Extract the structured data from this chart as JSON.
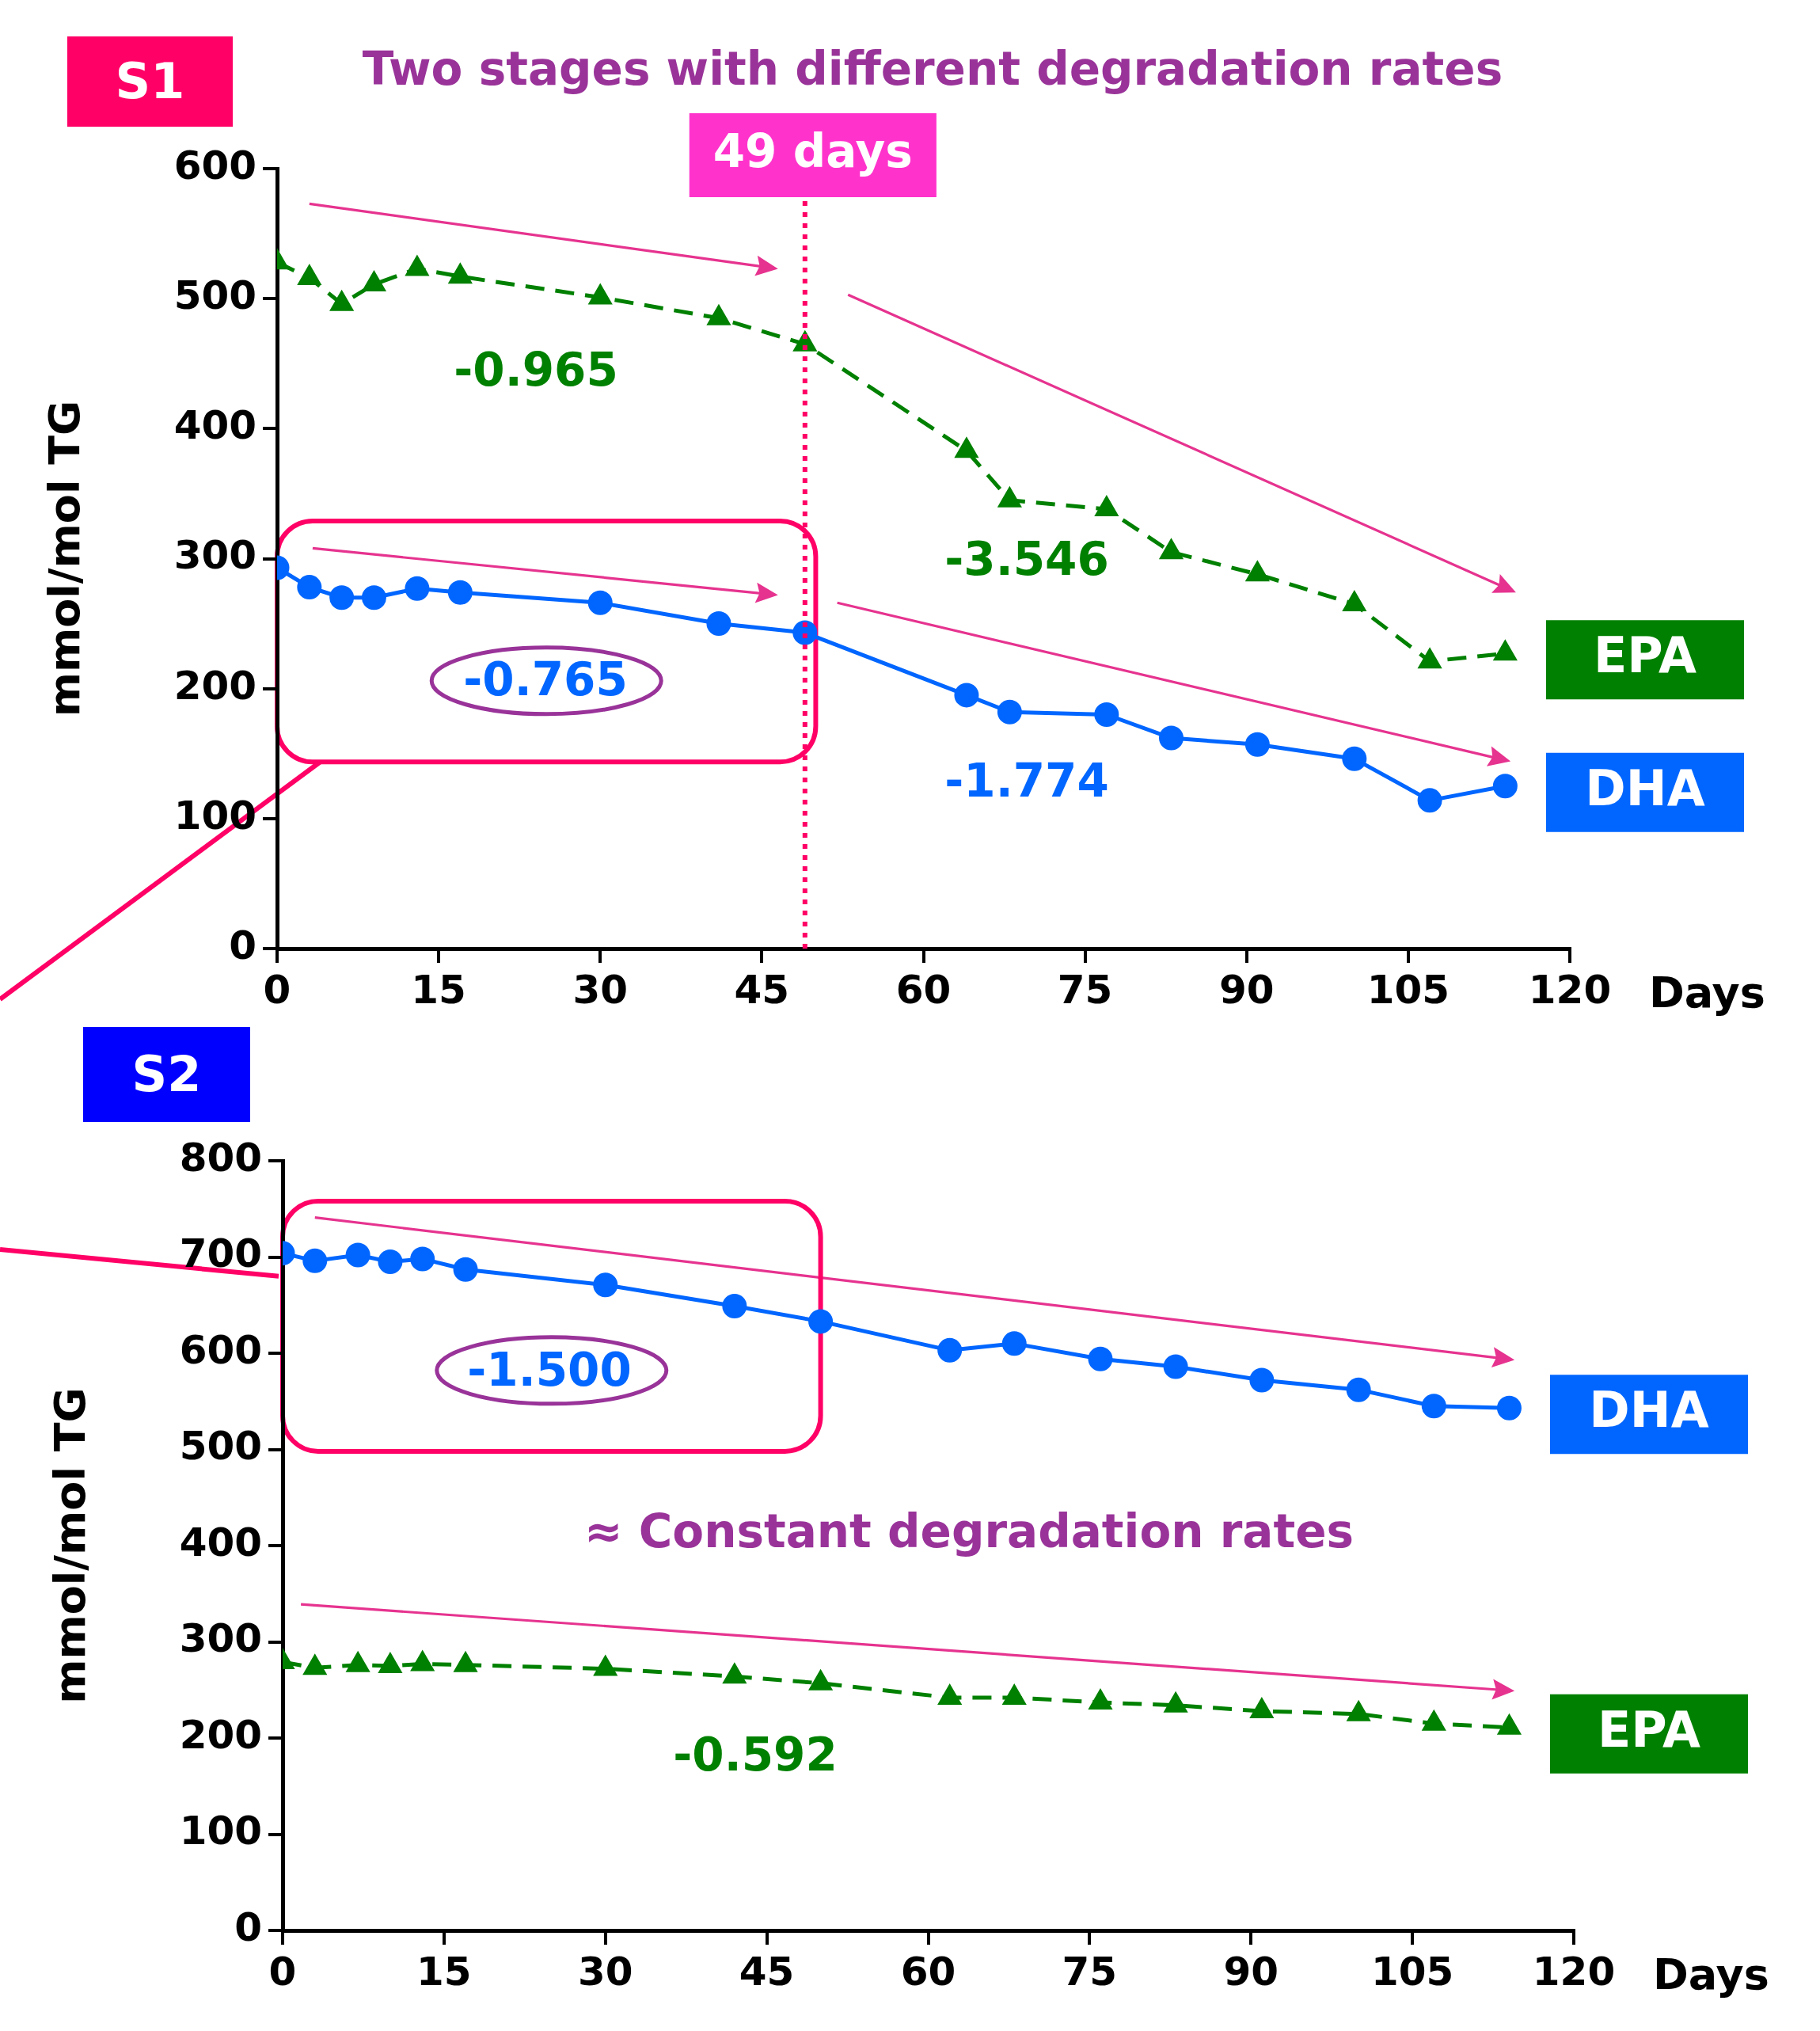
{
  "chart_data": [
    {
      "type": "line",
      "title": "Two stages with different degradation rates",
      "xlabel": "Days",
      "ylabel": "mmol/mol TG",
      "xlim": [
        0,
        120
      ],
      "xticks": [
        0,
        15,
        30,
        45,
        60,
        75,
        90,
        105,
        120
      ],
      "ylim": [
        0,
        600
      ],
      "yticks": [
        0,
        100,
        200,
        300,
        400,
        500,
        600
      ],
      "series": [
        {
          "name": "EPA",
          "color": "#008000",
          "line_style": "dashed",
          "marker": "triangle",
          "x": [
            0,
            3,
            6,
            9,
            13,
            17,
            30,
            41,
            49,
            64,
            68,
            77,
            83,
            91,
            100,
            107,
            114
          ],
          "values": [
            528,
            516,
            496,
            511,
            523,
            517,
            501,
            485,
            465,
            383,
            345,
            338,
            305,
            288,
            265,
            221,
            227
          ]
        },
        {
          "name": "DHA",
          "color": "#0066ff",
          "line_style": "solid",
          "marker": "circle",
          "x": [
            0,
            3,
            6,
            9,
            13,
            17,
            30,
            41,
            49,
            64,
            68,
            77,
            83,
            91,
            100,
            107,
            114
          ],
          "values": [
            293,
            278,
            270,
            270,
            277,
            274,
            266,
            250,
            243,
            195,
            182,
            180,
            162,
            157,
            146,
            114,
            125
          ]
        }
      ],
      "ref_lines": [
        {
          "axis": "x",
          "value": 49,
          "label": "49 days",
          "color": "#ff0066",
          "line_style": "dotted"
        }
      ],
      "annotations": [
        "S1",
        "-0.965",
        "-3.546",
        "-0.765",
        "-1.774"
      ]
    },
    {
      "type": "line",
      "xlabel": "Days",
      "ylabel": "mmol/mol TG",
      "xlim": [
        0,
        120
      ],
      "xticks": [
        0,
        15,
        30,
        45,
        60,
        75,
        90,
        105,
        120
      ],
      "ylim": [
        0,
        800
      ],
      "yticks": [
        0,
        100,
        200,
        300,
        400,
        500,
        600,
        700,
        800
      ],
      "series": [
        {
          "name": "DHA",
          "color": "#0066ff",
          "line_style": "solid",
          "marker": "circle",
          "x": [
            0,
            3,
            7,
            10,
            13,
            17,
            30,
            42,
            50,
            62,
            68,
            76,
            83,
            91,
            100,
            107,
            114
          ],
          "values": [
            704,
            696,
            702,
            695,
            698,
            687,
            671,
            649,
            633,
            603,
            610,
            594,
            586,
            572,
            562,
            545,
            543
          ]
        },
        {
          "name": "EPA",
          "color": "#008000",
          "line_style": "dashed",
          "marker": "triangle",
          "x": [
            0,
            3,
            7,
            10,
            13,
            17,
            30,
            42,
            50,
            62,
            68,
            76,
            83,
            91,
            100,
            107,
            114
          ],
          "values": [
            279,
            273,
            276,
            275,
            277,
            276,
            272,
            264,
            257,
            242,
            242,
            237,
            234,
            228,
            225,
            215,
            211
          ]
        }
      ],
      "annotations": [
        "S2",
        "≈ Constant degradation rates",
        "-1.500",
        "-0.592"
      ]
    }
  ]
}
